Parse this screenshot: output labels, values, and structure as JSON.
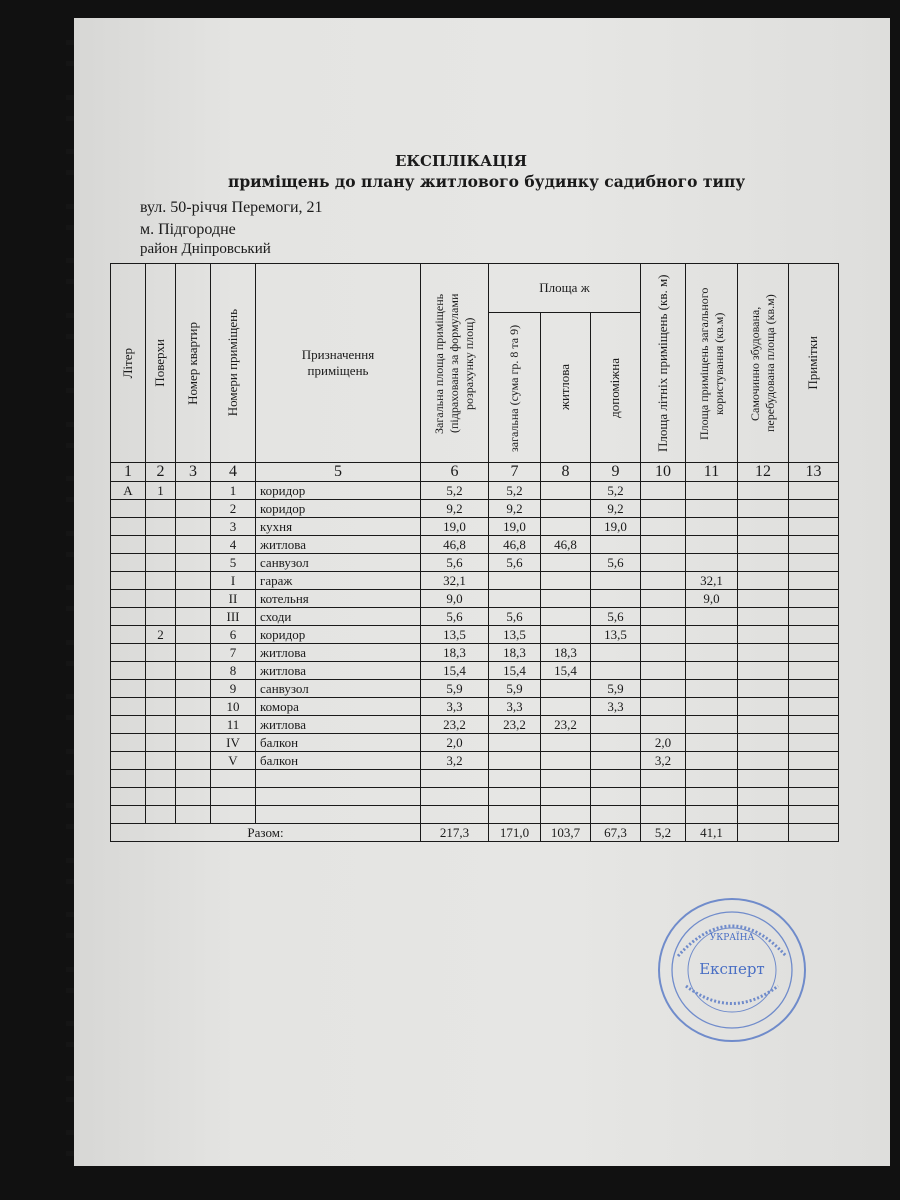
{
  "document": {
    "title": "ЕКСПЛІКАЦІЯ",
    "subtitle": "приміщень до плану житлового будинку садибного типу",
    "address_street": "вул. 50-річчя Перемоги, 21",
    "address_city": "м. Підгородне",
    "address_district": "район Дніпровський"
  },
  "table": {
    "headers": {
      "liter": "Літер",
      "floors": "Поверхи",
      "apartment": "Номер квартир",
      "room_numbers": "Номери приміщень",
      "purpose": "Призначення приміщень",
      "total_area": "Загальна площа приміщень (підрахована за формулами розрахунку площ)",
      "area_group": "Площа ж",
      "area_total": "загальна (сума гр. 8 та 9)",
      "area_living": "житлова",
      "area_aux": "допоміжна",
      "summer_area": "Площа літніх приміщень (кв. м)",
      "common_area": "Площа приміщень загального користування (кв.м)",
      "unauthorized_area": "Самочинно збудована, перебудована площа (кв.м)",
      "notes": "Примітки"
    },
    "column_numbers": [
      "1",
      "2",
      "3",
      "4",
      "5",
      "6",
      "7",
      "8",
      "9",
      "10",
      "11",
      "12",
      "13"
    ],
    "rows": [
      [
        "А",
        "1",
        "",
        "1",
        "коридор",
        "5,2",
        "5,2",
        "",
        "5,2",
        "",
        "",
        "",
        ""
      ],
      [
        "",
        "",
        "",
        "2",
        "коридор",
        "9,2",
        "9,2",
        "",
        "9,2",
        "",
        "",
        "",
        ""
      ],
      [
        "",
        "",
        "",
        "3",
        "кухня",
        "19,0",
        "19,0",
        "",
        "19,0",
        "",
        "",
        "",
        ""
      ],
      [
        "",
        "",
        "",
        "4",
        "житлова",
        "46,8",
        "46,8",
        "46,8",
        "",
        "",
        "",
        "",
        ""
      ],
      [
        "",
        "",
        "",
        "5",
        "санвузол",
        "5,6",
        "5,6",
        "",
        "5,6",
        "",
        "",
        "",
        ""
      ],
      [
        "",
        "",
        "",
        "I",
        "гараж",
        "32,1",
        "",
        "",
        "",
        "",
        "32,1",
        "",
        ""
      ],
      [
        "",
        "",
        "",
        "II",
        "котельня",
        "9,0",
        "",
        "",
        "",
        "",
        "9,0",
        "",
        ""
      ],
      [
        "",
        "",
        "",
        "III",
        "сходи",
        "5,6",
        "5,6",
        "",
        "5,6",
        "",
        "",
        "",
        ""
      ],
      [
        "",
        "2",
        "",
        "6",
        "коридор",
        "13,5",
        "13,5",
        "",
        "13,5",
        "",
        "",
        "",
        ""
      ],
      [
        "",
        "",
        "",
        "7",
        "житлова",
        "18,3",
        "18,3",
        "18,3",
        "",
        "",
        "",
        "",
        ""
      ],
      [
        "",
        "",
        "",
        "8",
        "житлова",
        "15,4",
        "15,4",
        "15,4",
        "",
        "",
        "",
        "",
        ""
      ],
      [
        "",
        "",
        "",
        "9",
        "санвузол",
        "5,9",
        "5,9",
        "",
        "5,9",
        "",
        "",
        "",
        ""
      ],
      [
        "",
        "",
        "",
        "10",
        "комора",
        "3,3",
        "3,3",
        "",
        "3,3",
        "",
        "",
        "",
        ""
      ],
      [
        "",
        "",
        "",
        "11",
        "житлова",
        "23,2",
        "23,2",
        "23,2",
        "",
        "",
        "",
        "",
        ""
      ],
      [
        "",
        "",
        "",
        "IV",
        "балкон",
        "2,0",
        "",
        "",
        "",
        "2,0",
        "",
        "",
        ""
      ],
      [
        "",
        "",
        "",
        "V",
        "балкон",
        "3,2",
        "",
        "",
        "",
        "3,2",
        "",
        "",
        ""
      ],
      [
        "",
        "",
        "",
        "",
        "",
        "",
        "",
        "",
        "",
        "",
        "",
        "",
        ""
      ],
      [
        "",
        "",
        "",
        "",
        "",
        "",
        "",
        "",
        "",
        "",
        "",
        "",
        ""
      ],
      [
        "",
        "",
        "",
        "",
        "",
        "",
        "",
        "",
        "",
        "",
        "",
        "",
        ""
      ]
    ],
    "totals": {
      "label": "Разом:",
      "values": [
        "217,3",
        "171,0",
        "103,7",
        "67,3",
        "5,2",
        "41,1",
        "",
        ""
      ]
    }
  },
  "stamp": {
    "center_text": "Експерт",
    "top_text": "УКРАЇНА",
    "color": "#4a6fc4"
  }
}
